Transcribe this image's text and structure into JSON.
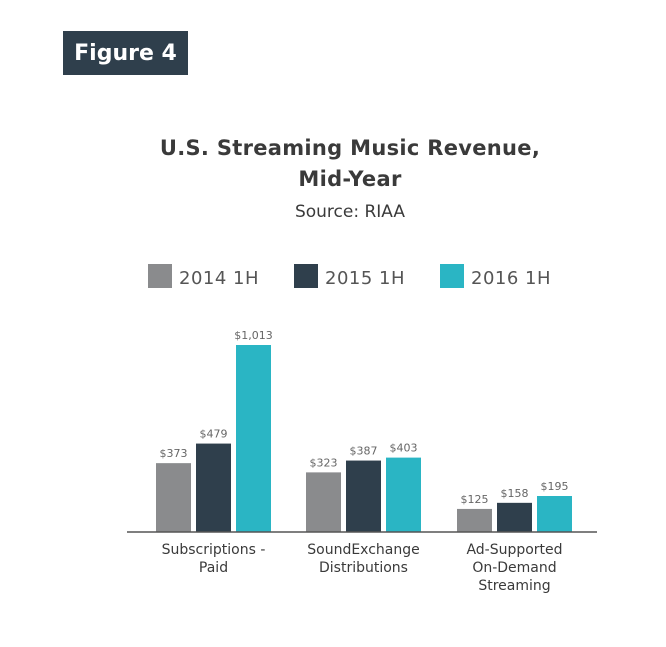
{
  "badge": {
    "label": "Figure 4"
  },
  "header": {
    "title_line1": "U.S. Streaming Music Revenue,",
    "title_line2": "Mid-Year",
    "source": "Source: RIAA"
  },
  "colors": {
    "badge_bg": "#2f3f4c",
    "s2014": "#8a8b8d",
    "s2015": "#2f3f4c",
    "s2016": "#2ab5c4",
    "axis": "#555555",
    "text": "#3a3a3a"
  },
  "chart_data": {
    "type": "bar",
    "title": "U.S. Streaming Music Revenue, Mid-Year",
    "subtitle": "Source: RIAA",
    "categories": [
      [
        "Subscriptions -",
        "Paid"
      ],
      [
        "SoundExchange",
        "Distributions"
      ],
      [
        "Ad-Supported",
        "On-Demand",
        "Streaming"
      ]
    ],
    "series": [
      {
        "name": "2014 1H",
        "color": "#8a8b8d",
        "values": [
          373,
          323,
          125
        ],
        "labels": [
          "$373",
          "$323",
          "$125"
        ]
      },
      {
        "name": "2015 1H",
        "color": "#2f3f4c",
        "values": [
          479,
          387,
          158
        ],
        "labels": [
          "$479",
          "$387",
          "$158"
        ]
      },
      {
        "name": "2016 1H",
        "color": "#2ab5c4",
        "values": [
          1013,
          403,
          195
        ],
        "labels": [
          "$1,013",
          "$403",
          "$195"
        ]
      }
    ],
    "ylim": [
      0,
      1013
    ],
    "grid": false,
    "legend": "top"
  }
}
